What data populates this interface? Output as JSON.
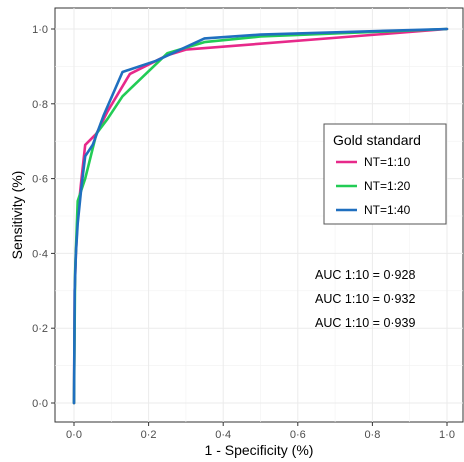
{
  "chart_data": {
    "type": "line",
    "xlabel": "1 - Specificity (%)",
    "ylabel": "Sensitivity (%)",
    "xlim": [
      0,
      1
    ],
    "ylim": [
      0,
      1
    ],
    "x_ticks": [
      0,
      0.2,
      0.4,
      0.6,
      0.8,
      1.0
    ],
    "y_ticks": [
      0,
      0.2,
      0.4,
      0.6,
      0.8,
      1.0
    ],
    "x_tick_labels": [
      "0·0",
      "0·2",
      "0·4",
      "0·6",
      "0·8",
      "1·0"
    ],
    "y_tick_labels": [
      "0·0",
      "0·2",
      "0·4",
      "0·6",
      "0·8",
      "1·0"
    ],
    "grid": true,
    "legend_title": "Gold standard",
    "legend_position": "right",
    "series": [
      {
        "name": "NT=1:10",
        "color": "#e7298a",
        "x": [
          0,
          0.002,
          0.005,
          0.01,
          0.02,
          0.03,
          0.06,
          0.09,
          0.15,
          0.25,
          0.3,
          1.0
        ],
        "y": [
          0,
          0.3,
          0.4,
          0.5,
          0.6,
          0.69,
          0.72,
          0.78,
          0.88,
          0.93,
          0.945,
          1.0
        ]
      },
      {
        "name": "NT=1:20",
        "color": "#22cc55",
        "x": [
          0,
          0.003,
          0.01,
          0.03,
          0.06,
          0.09,
          0.13,
          0.25,
          0.35,
          0.5,
          1.0
        ],
        "y": [
          0,
          0.35,
          0.54,
          0.6,
          0.72,
          0.76,
          0.82,
          0.935,
          0.965,
          0.98,
          1.0
        ]
      },
      {
        "name": "NT=1:40",
        "color": "#1f6fbf",
        "x": [
          0,
          0.002,
          0.005,
          0.01,
          0.02,
          0.03,
          0.05,
          0.08,
          0.13,
          0.22,
          0.35,
          0.5,
          1.0
        ],
        "y": [
          0,
          0.3,
          0.4,
          0.48,
          0.58,
          0.66,
          0.69,
          0.77,
          0.885,
          0.915,
          0.975,
          0.985,
          1.0
        ]
      }
    ],
    "annotations": [
      "AUC 1:10 = 0·928",
      "AUC 1:10 = 0·932",
      "AUC 1:10 = 0·939"
    ]
  }
}
